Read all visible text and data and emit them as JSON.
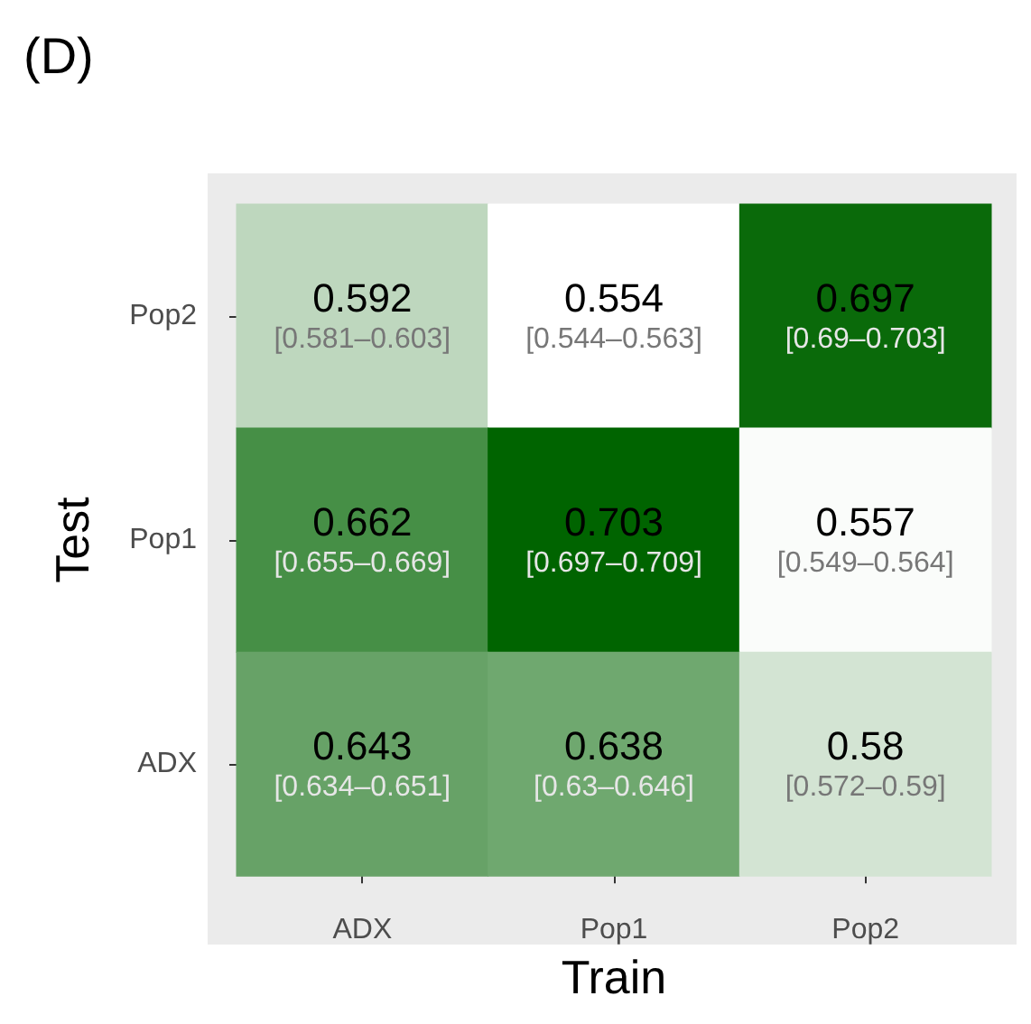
{
  "chart_data": {
    "type": "heatmap",
    "title": "(D)",
    "xlabel": "Train",
    "ylabel": "Test",
    "categories": [
      "ADX",
      "Pop1",
      "Pop2"
    ],
    "y_categories": [
      "Pop2",
      "Pop1",
      "ADX"
    ],
    "cells": [
      [
        0.592,
        0.554,
        0.697
      ],
      [
        0.662,
        0.703,
        0.557
      ],
      [
        0.643,
        0.638,
        0.58
      ]
    ],
    "annotations": [
      "[0.581–0.603]",
      "[0.544–0.563]",
      "[0.69–0.703]",
      "[0.655–0.669]",
      "[0.697–0.709]",
      "[0.549–0.564]",
      "[0.634–0.651]",
      "[0.63–0.646]",
      "[0.572–0.59]"
    ],
    "data_labels": true
  }
}
